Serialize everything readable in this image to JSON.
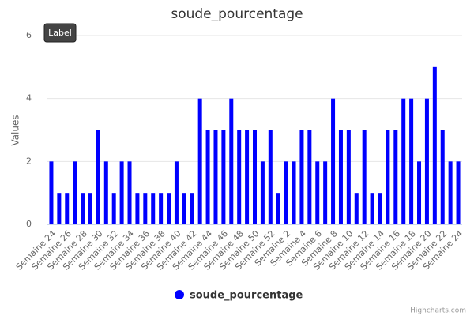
{
  "chart_data": {
    "type": "bar",
    "title": "soude_pourcentage",
    "y_axis_label": "Values",
    "tooltip": "Label",
    "credits": "Highcharts.com",
    "categories": [
      "Semaine 24",
      null,
      "Semaine 26",
      null,
      "Semaine 28",
      null,
      "Semaine 30",
      null,
      "Semaine 32",
      null,
      "Semaine 34",
      null,
      "Semaine 36",
      null,
      "Semaine 38",
      null,
      "Semaine 40",
      null,
      "Semaine 42",
      null,
      "Semaine 44",
      null,
      "Semaine 46",
      null,
      "Semaine 48",
      null,
      "Semaine 50",
      null,
      "Semaine 52",
      null,
      "Semaine 2",
      null,
      "Semaine 4",
      null,
      "Semaine 6",
      null,
      "Semaine 8",
      null,
      "Semaine 10",
      null,
      "Semaine 12",
      null,
      "Semaine 14",
      null,
      "Semaine 16",
      null,
      "Semaine 18",
      null,
      "Semaine 20",
      null,
      "Semaine 22",
      null,
      "Semaine 24"
    ],
    "series": [
      {
        "name": "soude_pourcentage",
        "color": "#0000ff",
        "values": [
          2,
          1,
          1,
          2,
          1,
          1,
          3,
          2,
          1,
          2,
          2,
          1,
          1,
          1,
          1,
          1,
          2,
          1,
          1,
          4,
          3,
          3,
          3,
          4,
          3,
          3,
          3,
          2,
          3,
          1,
          2,
          2,
          3,
          3,
          2,
          2,
          4,
          3,
          3,
          1,
          3,
          1,
          1,
          3,
          3,
          4,
          4,
          2,
          4,
          5,
          3,
          2,
          2
        ]
      }
    ],
    "ylim": [
      0,
      6
    ],
    "yticks": [
      0,
      2,
      4,
      6
    ],
    "grid": true
  }
}
